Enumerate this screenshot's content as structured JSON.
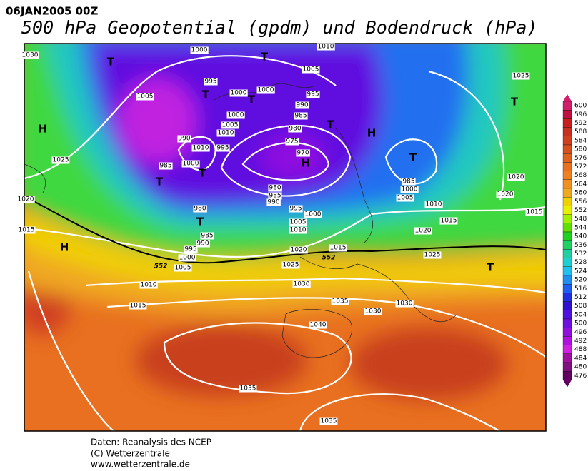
{
  "header": {
    "datetime": "06JAN2005 00Z",
    "title": "500 hPa Geopotential (gpdm) und Bodendruck (hPa)"
  },
  "footer": {
    "lines": [
      "Daten: Reanalysis des NCEP",
      "(C) Wetterzentrale",
      "www.wetterzentrale.de"
    ]
  },
  "legend": {
    "levels": [
      600,
      596,
      592,
      588,
      584,
      580,
      576,
      572,
      568,
      564,
      560,
      556,
      552,
      548,
      544,
      540,
      536,
      532,
      528,
      524,
      520,
      516,
      512,
      508,
      504,
      500,
      496,
      492,
      488,
      484,
      480,
      476
    ],
    "colors": [
      "#d0206a",
      "#c01040",
      "#c81e1e",
      "#c83020",
      "#d04020",
      "#d85020",
      "#e06020",
      "#e87020",
      "#f08020",
      "#f09020",
      "#f0a820",
      "#f0d000",
      "#e8f000",
      "#a0f000",
      "#60e000",
      "#20d020",
      "#20d060",
      "#20d0a0",
      "#20d0d0",
      "#20c0f0",
      "#2090f0",
      "#2060f0",
      "#2030e0",
      "#3010d0",
      "#5010e0",
      "#7010e0",
      "#9010e0",
      "#b010e0",
      "#d020e0",
      "#a010a0",
      "#801080",
      "#600060"
    ]
  },
  "map": {
    "pressure_centers": [
      "T",
      "T",
      "T",
      "H",
      "T",
      "T",
      "H",
      "T",
      "T",
      "T",
      "T",
      "H",
      "T",
      "H",
      "T"
    ],
    "isobar_labels": [
      1030,
      1000,
      1010,
      1005,
      1025,
      995,
      1000,
      1000,
      995,
      1005,
      990,
      985,
      1000,
      1005,
      1010,
      980,
      990,
      975,
      1010,
      995,
      970,
      1000,
      985,
      1025,
      985,
      1020,
      980,
      1000,
      985,
      1005,
      990,
      1020,
      1020,
      1010,
      1015,
      980,
      995,
      1000,
      1015,
      1005,
      1010,
      1020,
      1015,
      985,
      990,
      995,
      1015,
      1020,
      1025,
      1000,
      1005,
      1025,
      1010,
      1030,
      1015,
      1035,
      1030,
      1030,
      1040,
      1035,
      1035
    ],
    "gpdm_labels": [
      552,
      552
    ]
  }
}
